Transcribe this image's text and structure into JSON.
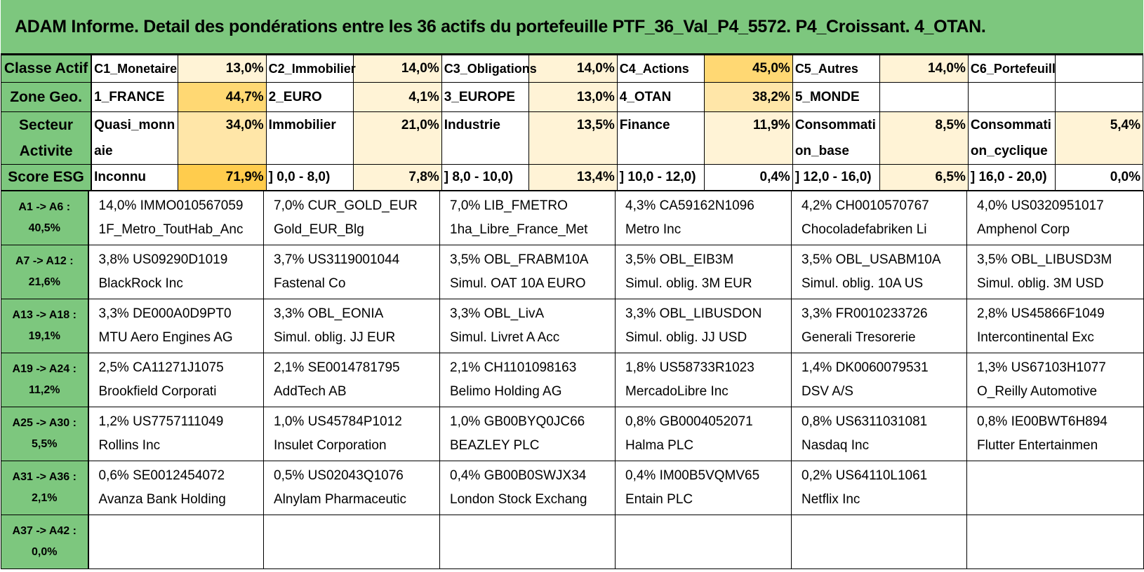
{
  "title": "ADAM Informe. Detail des pondérations entre les 36 actifs du portefeuille PTF_36_Val_P4_5572. P4_Croissant. 4_OTAN.",
  "colors": {
    "header_green": "#7dc77e",
    "heat_low": "#fff3d6",
    "heat_mid": "#ffe6a8",
    "heat_high": "#ffd873",
    "heat_max": "#ffcc4d"
  },
  "summary": {
    "rows": [
      {
        "label": "Classe Actif",
        "items": [
          {
            "name": "C1_Monetaire",
            "pct": "13,0%",
            "heat": "low"
          },
          {
            "name": "C2_Immobilier",
            "pct": "14,0%",
            "heat": "low"
          },
          {
            "name": "C3_Obligations",
            "pct": "14,0%",
            "heat": "low"
          },
          {
            "name": "C4_Actions",
            "pct": "45,0%",
            "heat": "high"
          },
          {
            "name": "C5_Autres",
            "pct": "14,0%",
            "heat": "low"
          },
          {
            "name": "C6_Portefeuill",
            "pct": "",
            "heat": "none"
          }
        ]
      },
      {
        "label": "Zone Geo.",
        "items": [
          {
            "name": "1_FRANCE",
            "pct": "44,7%",
            "heat": "high"
          },
          {
            "name": "2_EURO",
            "pct": "4,1%",
            "heat": "low"
          },
          {
            "name": "3_EUROPE",
            "pct": "13,0%",
            "heat": "low"
          },
          {
            "name": "4_OTAN",
            "pct": "38,2%",
            "heat": "mid"
          },
          {
            "name": "5_MONDE",
            "pct": "",
            "heat": "none"
          },
          {
            "name": "",
            "pct": "",
            "heat": "none"
          }
        ]
      },
      {
        "label1": "Secteur",
        "label2": "Activite",
        "items": [
          {
            "name": "Quasi_monnaie",
            "pct": "34,0%",
            "heat": "mid"
          },
          {
            "name": "Immobilier",
            "pct": "21,0%",
            "heat": "low"
          },
          {
            "name": "Industrie",
            "pct": "13,5%",
            "heat": "low"
          },
          {
            "name": "Finance",
            "pct": "11,9%",
            "heat": "low"
          },
          {
            "name": "Consommation_base",
            "pct": "8,5%",
            "heat": "low"
          },
          {
            "name": "Consommation_cyclique",
            "pct": "5,4%",
            "heat": "low"
          }
        ]
      },
      {
        "label": "Score ESG",
        "items": [
          {
            "name": "Inconnu",
            "pct": "71,9%",
            "heat": "max"
          },
          {
            "name": "] 0,0 - 8,0)",
            "pct": "7,8%",
            "heat": "low"
          },
          {
            "name": "] 8,0 - 10,0)",
            "pct": "13,4%",
            "heat": "low"
          },
          {
            "name": "] 10,0 - 12,0)",
            "pct": "0,4%",
            "heat": "none"
          },
          {
            "name": "] 12,0 - 16,0)",
            "pct": "6,5%",
            "heat": "low"
          },
          {
            "name": "] 16,0 - 20,0)",
            "pct": "0,0%",
            "heat": "none"
          }
        ]
      }
    ]
  },
  "assets": {
    "rows": [
      {
        "range": "A1 -> A6 :",
        "total": "40,5%",
        "cells": [
          {
            "line1": "14,0% IMMO010567059",
            "line2": "1F_Metro_ToutHab_Anc"
          },
          {
            "line1": "7,0% CUR_GOLD_EUR",
            "line2": "Gold_EUR_Blg"
          },
          {
            "line1": "7,0% LIB_FMETRO",
            "line2": "1ha_Libre_France_Met"
          },
          {
            "line1": "4,3% CA59162N1096",
            "line2": "Metro Inc"
          },
          {
            "line1": "4,2% CH0010570767",
            "line2": "Chocoladefabriken Li"
          },
          {
            "line1": "4,0% US0320951017",
            "line2": "Amphenol Corp"
          }
        ]
      },
      {
        "range": "A7 -> A12 :",
        "total": "21,6%",
        "cells": [
          {
            "line1": "3,8% US09290D1019",
            "line2": "BlackRock Inc"
          },
          {
            "line1": "3,7% US3119001044",
            "line2": "Fastenal Co"
          },
          {
            "line1": "3,5% OBL_FRABM10A",
            "line2": "Simul. OAT 10A EURO"
          },
          {
            "line1": "3,5% OBL_EIB3M",
            "line2": "Simul. oblig. 3M EUR"
          },
          {
            "line1": "3,5% OBL_USABM10A",
            "line2": "Simul. oblig. 10A US"
          },
          {
            "line1": "3,5% OBL_LIBUSD3M",
            "line2": "Simul. oblig. 3M USD"
          }
        ]
      },
      {
        "range": "A13 -> A18 :",
        "total": "19,1%",
        "cells": [
          {
            "line1": "3,3% DE000A0D9PT0",
            "line2": "MTU Aero Engines AG"
          },
          {
            "line1": "3,3% OBL_EONIA",
            "line2": "Simul. oblig. JJ EUR"
          },
          {
            "line1": "3,3% OBL_LivA",
            "line2": "Simul. Livret A Acc"
          },
          {
            "line1": "3,3% OBL_LIBUSDON",
            "line2": "Simul. oblig. JJ USD"
          },
          {
            "line1": "3,3% FR0010233726",
            "line2": "Generali Tresorerie"
          },
          {
            "line1": "2,8% US45866F1049",
            "line2": "Intercontinental Exc"
          }
        ]
      },
      {
        "range": "A19 -> A24 :",
        "total": "11,2%",
        "cells": [
          {
            "line1": "2,5% CA11271J1075",
            "line2": "Brookfield Corporati"
          },
          {
            "line1": "2,1% SE0014781795",
            "line2": "AddTech AB"
          },
          {
            "line1": "2,1% CH1101098163",
            "line2": "Belimo Holding AG"
          },
          {
            "line1": "1,8% US58733R1023",
            "line2": "MercadoLibre Inc"
          },
          {
            "line1": "1,4% DK0060079531",
            "line2": "DSV A/S"
          },
          {
            "line1": "1,3% US67103H1077",
            "line2": "O_Reilly Automotive"
          }
        ]
      },
      {
        "range": "A25 -> A30 :",
        "total": "5,5%",
        "cells": [
          {
            "line1": "1,2% US7757111049",
            "line2": "Rollins Inc"
          },
          {
            "line1": "1,0% US45784P1012",
            "line2": "Insulet Corporation"
          },
          {
            "line1": "1,0% GB00BYQ0JC66",
            "line2": "BEAZLEY PLC"
          },
          {
            "line1": "0,8% GB0004052071",
            "line2": "Halma PLC"
          },
          {
            "line1": "0,8% US6311031081",
            "line2": "Nasdaq Inc"
          },
          {
            "line1": "0,8% IE00BWT6H894",
            "line2": "Flutter Entertainmen"
          }
        ]
      },
      {
        "range": "A31 -> A36 :",
        "total": "2,1%",
        "cells": [
          {
            "line1": "0,6% SE0012454072",
            "line2": "Avanza Bank Holding"
          },
          {
            "line1": "0,5% US02043Q1076",
            "line2": "Alnylam Pharmaceutic"
          },
          {
            "line1": "0,4% GB00B0SWJX34",
            "line2": "London Stock Exchang"
          },
          {
            "line1": "0,4% IM00B5VQMV65",
            "line2": "Entain PLC"
          },
          {
            "line1": "0,2% US64110L1061",
            "line2": "Netflix Inc"
          },
          {
            "line1": "",
            "line2": ""
          }
        ]
      },
      {
        "range": "A37 -> A42 :",
        "total": "0,0%",
        "cells": [
          {
            "line1": "",
            "line2": ""
          },
          {
            "line1": "",
            "line2": ""
          },
          {
            "line1": "",
            "line2": ""
          },
          {
            "line1": "",
            "line2": ""
          },
          {
            "line1": "",
            "line2": ""
          },
          {
            "line1": "",
            "line2": ""
          }
        ]
      }
    ]
  }
}
